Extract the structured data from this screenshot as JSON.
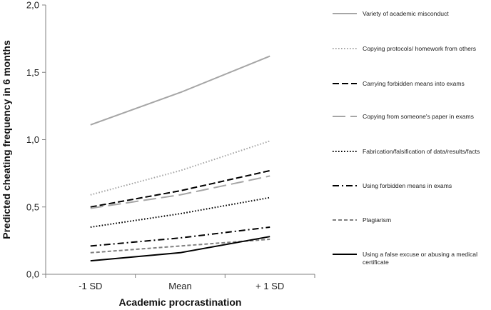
{
  "chart_data": {
    "type": "line",
    "xlabel": "Academic procrastination",
    "ylabel": "Predicted cheating frequency in 6 months",
    "categories": [
      "-1 SD",
      "Mean",
      "+ 1 SD"
    ],
    "ylim": [
      0,
      2
    ],
    "yticks": [
      "0,0",
      "0,5",
      "1,0",
      "1,5",
      "2,0"
    ],
    "ytick_values": [
      0,
      0.5,
      1.0,
      1.5,
      2.0
    ],
    "grid": false,
    "legend_position": "right",
    "series": [
      {
        "name": "Variety of academic misconduct",
        "values": [
          1.11,
          1.35,
          1.62
        ],
        "color": "#a6a6a6",
        "dash": "solid",
        "width": 2
      },
      {
        "name": "Copying protocols/ homework from others",
        "values": [
          0.59,
          0.77,
          0.99
        ],
        "color": "#a6a6a6",
        "dash": "dot",
        "width": 2
      },
      {
        "name": "Carrying forbidden means into exams",
        "values": [
          0.5,
          0.62,
          0.77
        ],
        "color": "#000000",
        "dash": "dash",
        "width": 2
      },
      {
        "name": "Copying from someone's paper in exams",
        "values": [
          0.49,
          0.59,
          0.73
        ],
        "color": "#a6a6a6",
        "dash": "longdash",
        "width": 2
      },
      {
        "name": "Fabrication/falsification of data/results/facts",
        "values": [
          0.35,
          0.45,
          0.57
        ],
        "color": "#000000",
        "dash": "dot",
        "width": 2
      },
      {
        "name": "Using forbidden means in exams",
        "values": [
          0.21,
          0.27,
          0.35
        ],
        "color": "#000000",
        "dash": "dashdot",
        "width": 2
      },
      {
        "name": "Plagiarism",
        "values": [
          0.16,
          0.21,
          0.26
        ],
        "color": "#808080",
        "dash": "shortdash",
        "width": 2
      },
      {
        "name": "Using a false excuse or abusing a medical certificate",
        "values": [
          0.1,
          0.16,
          0.28
        ],
        "color": "#000000",
        "dash": "solid",
        "width": 2
      }
    ]
  }
}
